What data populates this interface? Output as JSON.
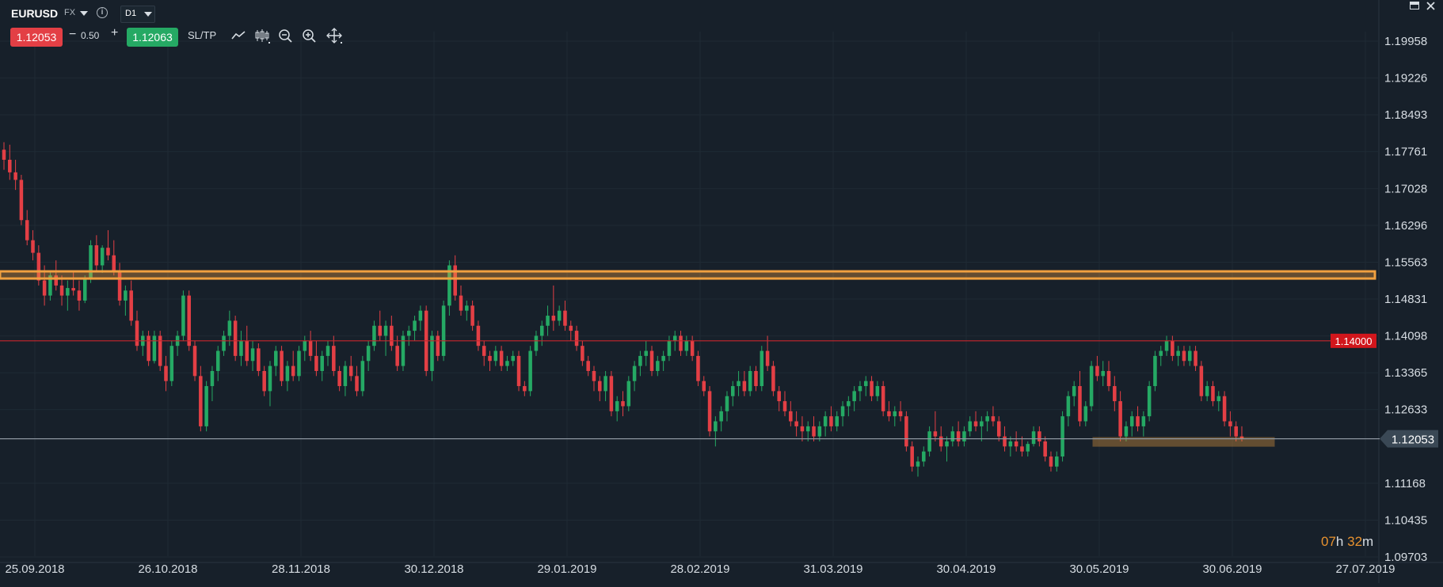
{
  "toolbar": {
    "symbol": "EURUSD",
    "symbol_type": "FX",
    "info_icon": "info-icon",
    "timeframe": "D1",
    "sell_price": "1.12053",
    "buy_price": "1.12063",
    "minus_label": "−",
    "volume": "0.50",
    "plus_label": "+",
    "sltp_label": "SL/TP",
    "tools": [
      "line-chart-icon",
      "candles-icon",
      "zoom-out-icon",
      "zoom-in-icon",
      "crosshair-icon"
    ]
  },
  "window_controls": [
    "minimize-icon",
    "close-icon"
  ],
  "colors": {
    "background": "#17202a",
    "bull": "#25a964",
    "bear": "#e33f45",
    "zone": "#f0a040",
    "alert_line": "#c8262c",
    "current_line": "#8d96a0"
  },
  "chart_data": {
    "type": "candlestick",
    "timeframe": "D1",
    "y_ticks": [
      "1.19958",
      "1.19226",
      "1.18493",
      "1.17761",
      "1.17028",
      "1.16296",
      "1.15563",
      "1.14831",
      "1.14098",
      "1.13365",
      "1.12633",
      "1.11168",
      "1.10435",
      "1.09703"
    ],
    "ylim": [
      1.09703,
      1.20691
    ],
    "x_ticks": [
      "25.09.2018",
      "26.10.2018",
      "28.11.2018",
      "30.12.2018",
      "29.01.2019",
      "28.02.2019",
      "31.03.2019",
      "30.04.2019",
      "30.05.2019",
      "30.06.2019",
      "27.07.2019"
    ],
    "current_price": "1.12053",
    "current_price_value": 1.12053,
    "alert_price": "1.14000",
    "alert_price_value": 1.14,
    "resistance_zone": [
      1.1527,
      1.1535
    ],
    "support_zone": [
      1.1195,
      1.1203
    ],
    "candles": [
      [
        1.178,
        1.1795,
        1.174,
        1.176
      ],
      [
        1.176,
        1.179,
        1.172,
        1.1735
      ],
      [
        1.1735,
        1.176,
        1.17,
        1.172
      ],
      [
        1.172,
        1.173,
        1.163,
        1.164
      ],
      [
        1.164,
        1.166,
        1.159,
        1.16
      ],
      [
        1.16,
        1.162,
        1.156,
        1.1575
      ],
      [
        1.1575,
        1.159,
        1.151,
        1.152
      ],
      [
        1.152,
        1.155,
        1.147,
        1.149
      ],
      [
        1.149,
        1.154,
        1.148,
        1.153
      ],
      [
        1.153,
        1.156,
        1.15,
        1.151
      ],
      [
        1.151,
        1.153,
        1.147,
        1.149
      ],
      [
        1.149,
        1.152,
        1.146,
        1.1505
      ],
      [
        1.1505,
        1.154,
        1.149,
        1.15
      ],
      [
        1.15,
        1.152,
        1.146,
        1.148
      ],
      [
        1.148,
        1.153,
        1.1475,
        1.1525
      ],
      [
        1.1525,
        1.16,
        1.1515,
        1.159
      ],
      [
        1.159,
        1.161,
        1.154,
        1.155
      ],
      [
        1.155,
        1.159,
        1.1535,
        1.1585
      ],
      [
        1.1585,
        1.162,
        1.156,
        1.157
      ],
      [
        1.157,
        1.16,
        1.153,
        1.154
      ],
      [
        1.154,
        1.1555,
        1.147,
        1.148
      ],
      [
        1.148,
        1.151,
        1.145,
        1.15
      ],
      [
        1.15,
        1.152,
        1.143,
        1.144
      ],
      [
        1.144,
        1.146,
        1.138,
        1.139
      ],
      [
        1.139,
        1.142,
        1.137,
        1.141
      ],
      [
        1.141,
        1.142,
        1.135,
        1.136
      ],
      [
        1.136,
        1.142,
        1.1355,
        1.141
      ],
      [
        1.141,
        1.142,
        1.134,
        1.135
      ],
      [
        1.135,
        1.137,
        1.13,
        1.132
      ],
      [
        1.132,
        1.14,
        1.131,
        1.139
      ],
      [
        1.139,
        1.142,
        1.137,
        1.141
      ],
      [
        1.141,
        1.15,
        1.14,
        1.149
      ],
      [
        1.149,
        1.15,
        1.138,
        1.139
      ],
      [
        1.139,
        1.14,
        1.132,
        1.133
      ],
      [
        1.133,
        1.135,
        1.122,
        1.123
      ],
      [
        1.123,
        1.132,
        1.122,
        1.131
      ],
      [
        1.131,
        1.135,
        1.128,
        1.134
      ],
      [
        1.134,
        1.139,
        1.132,
        1.138
      ],
      [
        1.138,
        1.142,
        1.137,
        1.141
      ],
      [
        1.141,
        1.146,
        1.139,
        1.144
      ],
      [
        1.144,
        1.145,
        1.136,
        1.137
      ],
      [
        1.137,
        1.142,
        1.135,
        1.14
      ],
      [
        1.14,
        1.143,
        1.135,
        1.136
      ],
      [
        1.136,
        1.14,
        1.134,
        1.1385
      ],
      [
        1.1385,
        1.1395,
        1.133,
        1.134
      ],
      [
        1.134,
        1.135,
        1.129,
        1.13
      ],
      [
        1.13,
        1.136,
        1.127,
        1.135
      ],
      [
        1.135,
        1.139,
        1.133,
        1.138
      ],
      [
        1.138,
        1.139,
        1.131,
        1.132
      ],
      [
        1.132,
        1.136,
        1.13,
        1.135
      ],
      [
        1.135,
        1.138,
        1.132,
        1.133
      ],
      [
        1.133,
        1.139,
        1.132,
        1.138
      ],
      [
        1.138,
        1.141,
        1.136,
        1.14
      ],
      [
        1.14,
        1.142,
        1.136,
        1.137
      ],
      [
        1.137,
        1.14,
        1.133,
        1.134
      ],
      [
        1.134,
        1.138,
        1.132,
        1.137
      ],
      [
        1.137,
        1.14,
        1.135,
        1.139
      ],
      [
        1.139,
        1.141,
        1.133,
        1.134
      ],
      [
        1.134,
        1.135,
        1.13,
        1.131
      ],
      [
        1.131,
        1.136,
        1.129,
        1.135
      ],
      [
        1.135,
        1.137,
        1.132,
        1.133
      ],
      [
        1.133,
        1.135,
        1.129,
        1.13
      ],
      [
        1.13,
        1.137,
        1.129,
        1.136
      ],
      [
        1.136,
        1.14,
        1.134,
        1.139
      ],
      [
        1.139,
        1.144,
        1.138,
        1.143
      ],
      [
        1.143,
        1.146,
        1.14,
        1.141
      ],
      [
        1.141,
        1.144,
        1.137,
        1.143
      ],
      [
        1.143,
        1.145,
        1.138,
        1.139
      ],
      [
        1.139,
        1.141,
        1.134,
        1.135
      ],
      [
        1.135,
        1.142,
        1.134,
        1.141
      ],
      [
        1.141,
        1.143,
        1.139,
        1.142
      ],
      [
        1.142,
        1.145,
        1.14,
        1.144
      ],
      [
        1.144,
        1.147,
        1.142,
        1.146
      ],
      [
        1.146,
        1.147,
        1.133,
        1.134
      ],
      [
        1.134,
        1.142,
        1.132,
        1.141
      ],
      [
        1.141,
        1.142,
        1.136,
        1.137
      ],
      [
        1.137,
        1.148,
        1.136,
        1.147
      ],
      [
        1.147,
        1.156,
        1.145,
        1.155
      ],
      [
        1.155,
        1.157,
        1.148,
        1.149
      ],
      [
        1.149,
        1.151,
        1.145,
        1.146
      ],
      [
        1.146,
        1.148,
        1.144,
        1.147
      ],
      [
        1.147,
        1.148,
        1.142,
        1.143
      ],
      [
        1.143,
        1.144,
        1.138,
        1.139
      ],
      [
        1.139,
        1.14,
        1.135,
        1.137
      ],
      [
        1.137,
        1.138,
        1.134,
        1.136
      ],
      [
        1.136,
        1.139,
        1.135,
        1.138
      ],
      [
        1.138,
        1.139,
        1.134,
        1.135
      ],
      [
        1.135,
        1.137,
        1.134,
        1.136
      ],
      [
        1.136,
        1.138,
        1.135,
        1.137
      ],
      [
        1.137,
        1.138,
        1.13,
        1.131
      ],
      [
        1.131,
        1.132,
        1.129,
        1.13
      ],
      [
        1.13,
        1.139,
        1.129,
        1.138
      ],
      [
        1.138,
        1.142,
        1.137,
        1.141
      ],
      [
        1.141,
        1.144,
        1.139,
        1.143
      ],
      [
        1.143,
        1.147,
        1.141,
        1.145
      ],
      [
        1.145,
        1.151,
        1.142,
        1.144
      ],
      [
        1.144,
        1.147,
        1.143,
        1.146
      ],
      [
        1.146,
        1.148,
        1.142,
        1.143
      ],
      [
        1.143,
        1.144,
        1.14,
        1.142
      ],
      [
        1.142,
        1.143,
        1.138,
        1.139
      ],
      [
        1.139,
        1.14,
        1.135,
        1.136
      ],
      [
        1.136,
        1.137,
        1.133,
        1.134
      ],
      [
        1.134,
        1.135,
        1.13,
        1.132
      ],
      [
        1.132,
        1.133,
        1.128,
        1.13
      ],
      [
        1.13,
        1.134,
        1.128,
        1.133
      ],
      [
        1.133,
        1.134,
        1.125,
        1.126
      ],
      [
        1.126,
        1.129,
        1.124,
        1.128
      ],
      [
        1.128,
        1.13,
        1.125,
        1.127
      ],
      [
        1.127,
        1.133,
        1.126,
        1.132
      ],
      [
        1.132,
        1.136,
        1.13,
        1.135
      ],
      [
        1.135,
        1.138,
        1.133,
        1.137
      ],
      [
        1.137,
        1.14,
        1.135,
        1.138
      ],
      [
        1.138,
        1.139,
        1.133,
        1.134
      ],
      [
        1.134,
        1.137,
        1.133,
        1.136
      ],
      [
        1.136,
        1.138,
        1.134,
        1.137
      ],
      [
        1.137,
        1.141,
        1.136,
        1.14
      ],
      [
        1.14,
        1.142,
        1.138,
        1.141
      ],
      [
        1.141,
        1.142,
        1.137,
        1.138
      ],
      [
        1.138,
        1.141,
        1.137,
        1.14
      ],
      [
        1.14,
        1.141,
        1.136,
        1.137
      ],
      [
        1.137,
        1.138,
        1.131,
        1.132
      ],
      [
        1.132,
        1.133,
        1.129,
        1.13
      ],
      [
        1.13,
        1.131,
        1.121,
        1.122
      ],
      [
        1.122,
        1.125,
        1.119,
        1.124
      ],
      [
        1.124,
        1.127,
        1.122,
        1.126
      ],
      [
        1.126,
        1.13,
        1.124,
        1.129
      ],
      [
        1.129,
        1.132,
        1.127,
        1.131
      ],
      [
        1.131,
        1.134,
        1.129,
        1.132
      ],
      [
        1.132,
        1.134,
        1.129,
        1.13
      ],
      [
        1.13,
        1.135,
        1.129,
        1.134
      ],
      [
        1.134,
        1.135,
        1.13,
        1.131
      ],
      [
        1.131,
        1.139,
        1.13,
        1.138
      ],
      [
        1.138,
        1.141,
        1.134,
        1.135
      ],
      [
        1.135,
        1.136,
        1.129,
        1.13
      ],
      [
        1.13,
        1.131,
        1.126,
        1.128
      ],
      [
        1.128,
        1.13,
        1.125,
        1.126
      ],
      [
        1.126,
        1.128,
        1.123,
        1.124
      ],
      [
        1.124,
        1.126,
        1.121,
        1.123
      ],
      [
        1.123,
        1.125,
        1.12,
        1.122
      ],
      [
        1.122,
        1.124,
        1.12,
        1.123
      ],
      [
        1.123,
        1.125,
        1.12,
        1.121
      ],
      [
        1.121,
        1.124,
        1.12,
        1.123
      ],
      [
        1.123,
        1.126,
        1.121,
        1.125
      ],
      [
        1.125,
        1.127,
        1.122,
        1.123
      ],
      [
        1.123,
        1.126,
        1.122,
        1.125
      ],
      [
        1.125,
        1.128,
        1.123,
        1.127
      ],
      [
        1.127,
        1.129,
        1.125,
        1.128
      ],
      [
        1.128,
        1.131,
        1.126,
        1.13
      ],
      [
        1.13,
        1.132,
        1.128,
        1.131
      ],
      [
        1.131,
        1.133,
        1.129,
        1.132
      ],
      [
        1.132,
        1.133,
        1.128,
        1.129
      ],
      [
        1.129,
        1.132,
        1.128,
        1.131
      ],
      [
        1.131,
        1.132,
        1.125,
        1.126
      ],
      [
        1.126,
        1.128,
        1.124,
        1.125
      ],
      [
        1.125,
        1.127,
        1.123,
        1.126
      ],
      [
        1.126,
        1.128,
        1.124,
        1.125
      ],
      [
        1.125,
        1.126,
        1.118,
        1.119
      ],
      [
        1.119,
        1.12,
        1.114,
        1.115
      ],
      [
        1.115,
        1.117,
        1.113,
        1.116
      ],
      [
        1.116,
        1.119,
        1.115,
        1.118
      ],
      [
        1.118,
        1.123,
        1.117,
        1.122
      ],
      [
        1.122,
        1.126,
        1.12,
        1.121
      ],
      [
        1.121,
        1.123,
        1.118,
        1.119
      ],
      [
        1.119,
        1.121,
        1.116,
        1.12
      ],
      [
        1.12,
        1.123,
        1.119,
        1.122
      ],
      [
        1.122,
        1.124,
        1.119,
        1.12
      ],
      [
        1.12,
        1.123,
        1.119,
        1.122
      ],
      [
        1.122,
        1.125,
        1.121,
        1.124
      ],
      [
        1.124,
        1.126,
        1.122,
        1.123
      ],
      [
        1.123,
        1.125,
        1.12,
        1.124
      ],
      [
        1.124,
        1.126,
        1.122,
        1.125
      ],
      [
        1.125,
        1.127,
        1.123,
        1.124
      ],
      [
        1.124,
        1.125,
        1.12,
        1.121
      ],
      [
        1.121,
        1.123,
        1.118,
        1.119
      ],
      [
        1.119,
        1.121,
        1.117,
        1.12
      ],
      [
        1.12,
        1.122,
        1.118,
        1.119
      ],
      [
        1.119,
        1.121,
        1.117,
        1.118
      ],
      [
        1.118,
        1.12,
        1.117,
        1.1195
      ],
      [
        1.1195,
        1.123,
        1.119,
        1.122
      ],
      [
        1.122,
        1.123,
        1.119,
        1.12
      ],
      [
        1.12,
        1.121,
        1.116,
        1.117
      ],
      [
        1.117,
        1.118,
        1.114,
        1.115
      ],
      [
        1.115,
        1.118,
        1.114,
        1.117
      ],
      [
        1.117,
        1.126,
        1.116,
        1.125
      ],
      [
        1.125,
        1.13,
        1.123,
        1.129
      ],
      [
        1.129,
        1.132,
        1.127,
        1.131
      ],
      [
        1.131,
        1.134,
        1.123,
        1.124
      ],
      [
        1.124,
        1.128,
        1.123,
        1.127
      ],
      [
        1.127,
        1.136,
        1.126,
        1.135
      ],
      [
        1.135,
        1.137,
        1.132,
        1.133
      ],
      [
        1.133,
        1.136,
        1.131,
        1.134
      ],
      [
        1.134,
        1.136,
        1.13,
        1.131
      ],
      [
        1.131,
        1.133,
        1.126,
        1.128
      ],
      [
        1.128,
        1.13,
        1.12,
        1.121
      ],
      [
        1.121,
        1.124,
        1.12,
        1.123
      ],
      [
        1.123,
        1.126,
        1.121,
        1.125
      ],
      [
        1.125,
        1.127,
        1.122,
        1.123
      ],
      [
        1.123,
        1.126,
        1.121,
        1.125
      ],
      [
        1.125,
        1.132,
        1.124,
        1.131
      ],
      [
        1.131,
        1.138,
        1.13,
        1.137
      ],
      [
        1.137,
        1.139,
        1.135,
        1.138
      ],
      [
        1.138,
        1.141,
        1.137,
        1.14
      ],
      [
        1.14,
        1.141,
        1.136,
        1.137
      ],
      [
        1.137,
        1.139,
        1.135,
        1.138
      ],
      [
        1.138,
        1.139,
        1.135,
        1.136
      ],
      [
        1.136,
        1.139,
        1.135,
        1.138
      ],
      [
        1.138,
        1.139,
        1.134,
        1.135
      ],
      [
        1.135,
        1.136,
        1.128,
        1.129
      ],
      [
        1.129,
        1.132,
        1.128,
        1.131
      ],
      [
        1.131,
        1.132,
        1.127,
        1.128
      ],
      [
        1.128,
        1.13,
        1.126,
        1.129
      ],
      [
        1.129,
        1.13,
        1.123,
        1.124
      ],
      [
        1.124,
        1.126,
        1.121,
        1.123
      ],
      [
        1.123,
        1.124,
        1.12,
        1.121
      ],
      [
        1.121,
        1.123,
        1.12,
        1.1205
      ]
    ]
  }
}
